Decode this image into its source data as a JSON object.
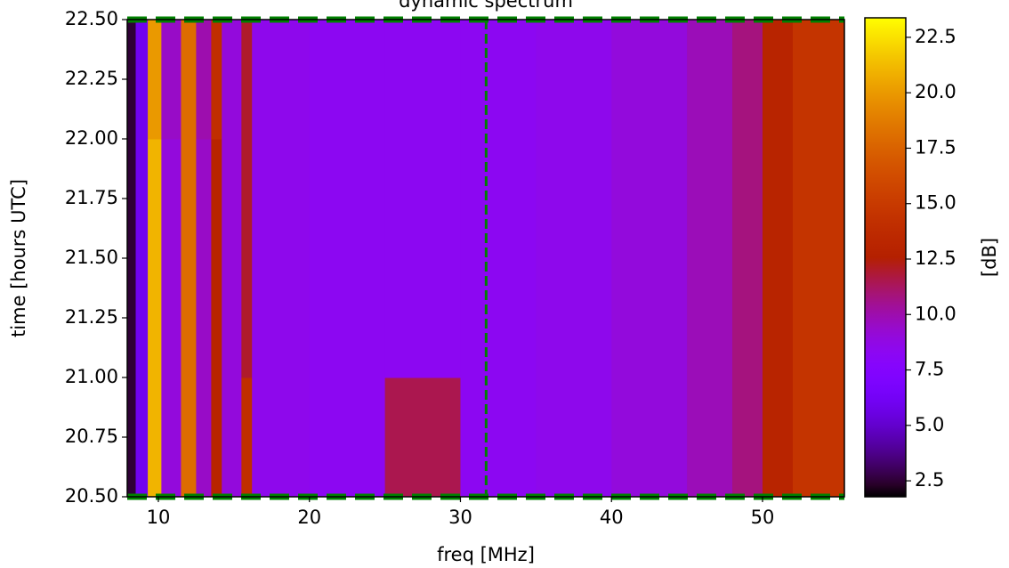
{
  "chart_data": {
    "type": "heatmap",
    "title": "dynamic spectrum",
    "x_label": "freq [MHz]",
    "y_label": "time [hours UTC]",
    "colorbar_label": "[dB]",
    "colormap": "gnuplot",
    "x_edges": [
      7.94,
      8.5,
      9.3,
      10.2,
      11.5,
      12.5,
      13.5,
      14.2,
      15.5,
      16.2,
      20,
      25,
      30,
      35,
      40,
      45,
      48,
      50,
      52,
      55.42
    ],
    "y_edges": [
      20.5,
      21.0,
      21.5,
      22.0,
      22.5
    ],
    "z": [
      [
        2.5,
        6,
        21,
        9,
        18,
        9.5,
        13,
        9,
        14,
        8.5,
        8.3,
        11.5,
        8.3,
        8.5,
        9,
        9.8,
        10.8,
        13,
        14.5
      ],
      [
        2.5,
        6,
        21,
        9,
        18,
        9.5,
        13,
        9,
        12,
        8.5,
        8.3,
        8.3,
        8.3,
        8.5,
        9,
        9.8,
        10.8,
        13,
        14.5
      ],
      [
        2.5,
        6,
        21,
        9,
        18,
        9.5,
        13,
        9,
        12,
        8.5,
        8.3,
        8.3,
        8.3,
        8.5,
        9,
        9.8,
        10.8,
        13,
        14.5
      ],
      [
        2.5,
        6,
        20,
        9.5,
        18,
        10,
        14,
        9,
        12,
        8.5,
        8.3,
        8.3,
        8.3,
        8.5,
        9,
        9.8,
        10.8,
        13,
        14.5
      ]
    ],
    "xlim": [
      7.94,
      55.42
    ],
    "ylim": [
      20.5,
      22.5
    ],
    "clim": [
      1.78,
      23.38
    ],
    "xticks": [
      10,
      20,
      30,
      40,
      50
    ],
    "yticks": [
      {
        "value": 20.5,
        "label": "20.50"
      },
      {
        "value": 20.75,
        "label": "20.75"
      },
      {
        "value": 21.0,
        "label": "21.00"
      },
      {
        "value": 21.25,
        "label": "21.25"
      },
      {
        "value": 21.5,
        "label": "21.50"
      },
      {
        "value": 21.75,
        "label": "21.75"
      },
      {
        "value": 22.0,
        "label": "22.00"
      },
      {
        "value": 22.25,
        "label": "22.25"
      },
      {
        "value": 22.5,
        "label": "22.50"
      }
    ],
    "cticks": [
      2.5,
      {
        "value": 5,
        "label": "5.0"
      },
      7.5,
      {
        "value": 10,
        "label": "10.0"
      },
      12.5,
      {
        "value": 15,
        "label": "15.0"
      },
      17.5,
      {
        "value": 20,
        "label": "20.0"
      },
      22.5
    ],
    "vlines": [
      31.7
    ],
    "hlines": [
      20.5,
      22.5
    ],
    "line_color": "#008000"
  }
}
